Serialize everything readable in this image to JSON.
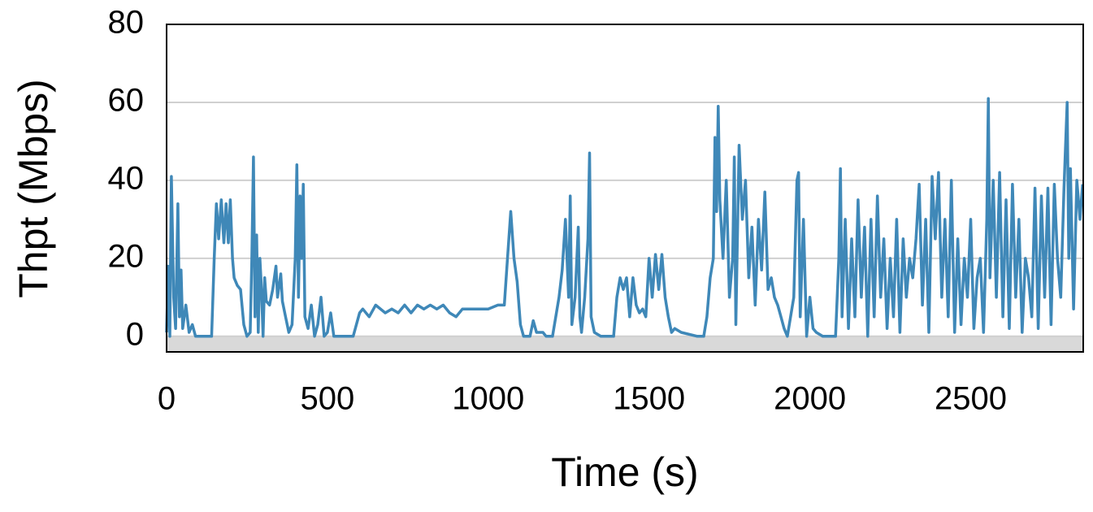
{
  "chart_data": {
    "type": "line",
    "x_label": "Time (s)",
    "y_label": "Thpt (Mbps)",
    "xlim": [
      0,
      2850
    ],
    "ylim": [
      -4,
      80
    ],
    "xticks": [
      0,
      500,
      1000,
      1500,
      2000,
      2500
    ],
    "yticks": [
      0,
      20,
      40,
      60,
      80
    ],
    "grid": true,
    "series": [
      {
        "name": "Thpt",
        "color": "#3f88b8",
        "x": [
          0,
          5,
          10,
          15,
          22,
          28,
          35,
          40,
          45,
          50,
          60,
          70,
          80,
          90,
          140,
          148,
          155,
          162,
          170,
          178,
          185,
          192,
          198,
          205,
          210,
          220,
          230,
          240,
          250,
          260,
          265,
          270,
          275,
          280,
          285,
          290,
          295,
          300,
          305,
          310,
          320,
          330,
          340,
          345,
          355,
          360,
          370,
          380,
          390,
          400,
          405,
          410,
          415,
          420,
          425,
          430,
          440,
          450,
          460,
          470,
          480,
          490,
          500,
          510,
          520,
          560,
          580,
          600,
          610,
          630,
          650,
          680,
          700,
          720,
          740,
          760,
          780,
          800,
          820,
          840,
          860,
          880,
          900,
          920,
          950,
          980,
          1000,
          1030,
          1050,
          1060,
          1070,
          1080,
          1090,
          1100,
          1110,
          1130,
          1140,
          1150,
          1170,
          1180,
          1200,
          1210,
          1220,
          1230,
          1240,
          1250,
          1255,
          1260,
          1270,
          1280,
          1285,
          1290,
          1300,
          1310,
          1315,
          1320,
          1330,
          1350,
          1390,
          1400,
          1410,
          1420,
          1430,
          1440,
          1450,
          1460,
          1470,
          1480,
          1490,
          1500,
          1510,
          1520,
          1530,
          1540,
          1550,
          1560,
          1570,
          1580,
          1600,
          1650,
          1670,
          1680,
          1690,
          1700,
          1705,
          1710,
          1715,
          1720,
          1730,
          1740,
          1750,
          1760,
          1765,
          1770,
          1780,
          1790,
          1800,
          1810,
          1820,
          1830,
          1840,
          1850,
          1860,
          1870,
          1880,
          1890,
          1900,
          1910,
          1920,
          1930,
          1950,
          1960,
          1965,
          1970,
          1980,
          1990,
          2000,
          2010,
          2020,
          2040,
          2080,
          2090,
          2095,
          2100,
          2110,
          2120,
          2130,
          2140,
          2150,
          2160,
          2170,
          2180,
          2190,
          2200,
          2210,
          2220,
          2230,
          2240,
          2250,
          2260,
          2270,
          2280,
          2290,
          2300,
          2310,
          2320,
          2330,
          2340,
          2350,
          2360,
          2370,
          2380,
          2390,
          2400,
          2410,
          2420,
          2430,
          2440,
          2450,
          2460,
          2470,
          2480,
          2490,
          2500,
          2510,
          2520,
          2530,
          2540,
          2550,
          2555,
          2560,
          2570,
          2580,
          2590,
          2600,
          2610,
          2620,
          2630,
          2640,
          2650,
          2660,
          2670,
          2680,
          2690,
          2700,
          2710,
          2720,
          2730,
          2740,
          2750,
          2760,
          2770,
          2780,
          2790,
          2800,
          2805,
          2810,
          2820,
          2830,
          2840,
          2848
        ],
        "values": [
          1,
          18,
          0,
          41,
          10,
          2,
          34,
          5,
          17,
          2,
          8,
          1,
          3,
          0,
          0,
          20,
          34,
          25,
          35,
          24,
          34,
          24,
          35,
          20,
          15,
          13,
          12,
          3,
          0,
          1,
          20,
          46,
          5,
          26,
          1,
          20,
          12,
          0,
          15,
          9,
          8,
          12,
          18,
          10,
          16,
          9,
          5,
          1,
          3,
          20,
          44,
          10,
          36,
          20,
          39,
          5,
          2,
          8,
          0,
          3,
          10,
          0,
          1,
          6,
          0,
          0,
          0,
          6,
          7,
          5,
          8,
          6,
          7,
          6,
          8,
          6,
          8,
          7,
          8,
          7,
          8,
          6,
          5,
          7,
          7,
          7,
          7,
          8,
          8,
          20,
          32,
          20,
          14,
          3,
          0,
          0,
          4,
          1,
          1,
          0,
          0,
          5,
          10,
          17,
          30,
          10,
          36,
          3,
          10,
          28,
          5,
          1,
          10,
          25,
          47,
          5,
          1,
          0,
          0,
          10,
          15,
          12,
          15,
          5,
          15,
          8,
          6,
          7,
          5,
          20,
          10,
          21,
          12,
          21,
          10,
          5,
          1,
          2,
          1,
          0,
          0,
          5,
          15,
          20,
          51,
          32,
          59,
          35,
          20,
          40,
          10,
          20,
          46,
          3,
          49,
          30,
          40,
          15,
          28,
          8,
          30,
          17,
          37,
          12,
          15,
          10,
          8,
          5,
          2,
          0,
          10,
          40,
          42,
          5,
          30,
          0,
          10,
          2,
          1,
          0,
          0,
          20,
          43,
          5,
          30,
          2,
          25,
          5,
          35,
          10,
          28,
          0,
          30,
          5,
          36,
          10,
          25,
          2,
          20,
          5,
          30,
          1,
          25,
          10,
          20,
          15,
          25,
          39,
          8,
          30,
          1,
          41,
          25,
          42,
          10,
          30,
          5,
          40,
          1,
          25,
          3,
          20,
          10,
          30,
          2,
          15,
          20,
          1,
          30,
          61,
          15,
          40,
          10,
          42,
          5,
          35,
          2,
          39,
          10,
          30,
          1,
          20,
          15,
          5,
          38,
          2,
          36,
          10,
          38,
          3,
          39,
          20,
          10,
          38,
          60,
          20,
          43,
          7,
          40,
          30,
          39
        ]
      }
    ]
  }
}
